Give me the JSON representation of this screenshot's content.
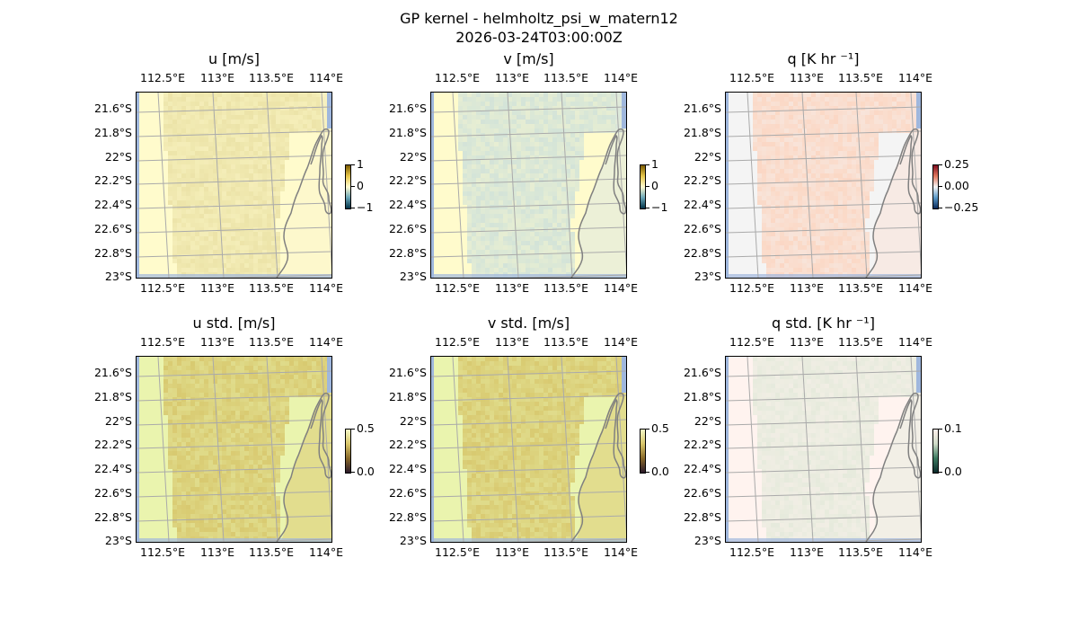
{
  "figure": {
    "title_line1": "GP kernel - helmholtz_psi_w_matern12",
    "title_line2": "2026-03-24T03:00:00Z"
  },
  "axes": {
    "lon_ticks": [
      "112.5°E",
      "113°E",
      "113.5°E",
      "114°E"
    ],
    "lat_ticks": [
      "21.6°S",
      "21.8°S",
      "22°S",
      "22.2°S",
      "22.4°S",
      "22.6°S",
      "22.8°S",
      "23°S"
    ]
  },
  "panels": [
    {
      "id": "u",
      "title": "u [m/s]",
      "cbar_ticks": [
        "1",
        "0",
        "−1"
      ],
      "fill_color": "#ece3a8",
      "base_color": "#fffbcc",
      "ocean_color": "#fbf6cb",
      "cbar_colors": [
        "#7a5a00",
        "#e6c64a",
        "#fffbd0",
        "#6aa6b8",
        "#003247"
      ]
    },
    {
      "id": "v",
      "title": "v [m/s]",
      "cbar_ticks": [
        "1",
        "0",
        "−1"
      ],
      "fill_color": "#d3e3d8",
      "base_color": "#fffbcc",
      "ocean_color": "#dfe9de",
      "cbar_colors": [
        "#7a5a00",
        "#e6c64a",
        "#fffbd0",
        "#6aa6b8",
        "#003247"
      ]
    },
    {
      "id": "q",
      "title": "q [K hr ⁻¹]",
      "cbar_ticks": [
        "0.25",
        "0.00",
        "−0.25"
      ],
      "fill_color": "#fbd7c4",
      "base_color": "#f4f4f4",
      "ocean_color": "#f8e3d8",
      "cbar_colors": [
        "#7f0d1f",
        "#e0785e",
        "#f6f6f6",
        "#5b9ac9",
        "#0a2a5a"
      ]
    },
    {
      "id": "u_std",
      "title": "u std. [m/s]",
      "cbar_ticks": [
        "0.5",
        "0.0"
      ],
      "fill_color": "#d8c970",
      "base_color": "#eaf4ae",
      "ocean_color": "#dccd78",
      "cbar_colors": [
        "#f4f8c8",
        "#d9c66a",
        "#8a6a2a",
        "#2a1a2a"
      ]
    },
    {
      "id": "v_std",
      "title": "v std. [m/s]",
      "cbar_ticks": [
        "0.5",
        "0.0"
      ],
      "fill_color": "#d8c970",
      "base_color": "#eaf4ae",
      "ocean_color": "#dccd78",
      "cbar_colors": [
        "#f4f8c8",
        "#d9c66a",
        "#8a6a2a",
        "#2a1a2a"
      ]
    },
    {
      "id": "q_std",
      "title": "q std. [K hr ⁻¹]",
      "cbar_ticks": [
        "0.1",
        "0.0"
      ],
      "fill_color": "#e6eadc",
      "base_color": "#fff3ef",
      "ocean_color": "#e9ecdf",
      "cbar_colors": [
        "#fff2ee",
        "#cfdcc8",
        "#3c7a60",
        "#0a2a2a"
      ]
    }
  ],
  "colors": {
    "grid": "#aaaaaa",
    "coastline": "#808080",
    "edge_band": "#9fb7dd"
  }
}
